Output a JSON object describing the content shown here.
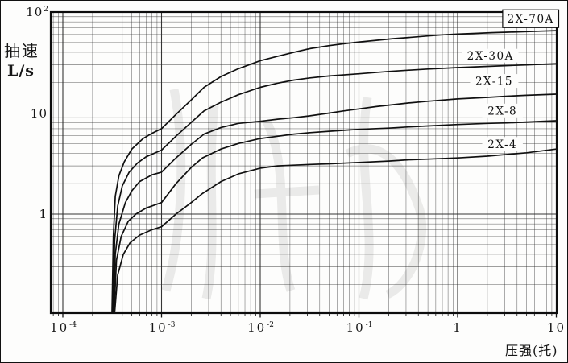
{
  "figure": {
    "y_axis_title_line1": "抽速",
    "y_axis_title_line2": "L/s",
    "x_axis_title": "压强(托)"
  },
  "chart_data": {
    "type": "line",
    "title": "",
    "xlabel": "压强(托)",
    "ylabel": "抽速 L/s",
    "x_scale": "log",
    "y_scale": "log",
    "x_range": [
      7.5e-05,
      10
    ],
    "y_range": [
      0.105,
      100
    ],
    "grid": true,
    "legend_position": "labels-on-curves",
    "x_ticks": [
      {
        "text": "10",
        "sup": "-4",
        "value": 0.0001
      },
      {
        "text": "10",
        "sup": "-3",
        "value": 0.001
      },
      {
        "text": "10",
        "sup": "-2",
        "value": 0.01
      },
      {
        "text": "10",
        "sup": "-1",
        "value": 0.1
      },
      {
        "text": "1",
        "sup": "",
        "value": 1
      },
      {
        "text": "10",
        "sup": "",
        "value": 10
      }
    ],
    "y_ticks": [
      {
        "text": "10",
        "sup": "2",
        "value": 100
      },
      {
        "text": "10",
        "sup": "",
        "value": 10
      },
      {
        "text": "1",
        "sup": "",
        "value": 1
      }
    ],
    "series": [
      {
        "name": "2X-70A",
        "label": {
          "text": "2X-70A",
          "p": 5.5,
          "s": 86,
          "boxed": true
        },
        "points": [
          [
            0.000315,
            0.105
          ],
          [
            0.000325,
            0.6
          ],
          [
            0.00034,
            1.5
          ],
          [
            0.00037,
            2.4
          ],
          [
            0.00042,
            3.3
          ],
          [
            0.0005,
            4.4
          ],
          [
            0.00065,
            5.6
          ],
          [
            0.0008,
            6.3
          ],
          [
            0.001,
            7.0
          ],
          [
            0.0014,
            9.7
          ],
          [
            0.002,
            13.5
          ],
          [
            0.0027,
            18
          ],
          [
            0.004,
            23
          ],
          [
            0.006,
            27.5
          ],
          [
            0.01,
            33
          ],
          [
            0.015,
            36.5
          ],
          [
            0.022,
            40
          ],
          [
            0.032,
            43.5
          ],
          [
            0.05,
            46.5
          ],
          [
            0.07,
            48.5
          ],
          [
            0.1,
            50.5
          ],
          [
            0.15,
            52.5
          ],
          [
            0.22,
            54.5
          ],
          [
            0.32,
            56
          ],
          [
            0.5,
            58
          ],
          [
            0.7,
            59.5
          ],
          [
            1,
            60.5
          ],
          [
            1.5,
            61.5
          ],
          [
            2.2,
            62.5
          ],
          [
            3.2,
            63.2
          ],
          [
            5,
            64
          ],
          [
            7,
            64.7
          ],
          [
            10,
            65.5
          ]
        ]
      },
      {
        "name": "2X-30A",
        "label": {
          "text": "2X-30A",
          "p": 2.15,
          "s": 37,
          "boxed": false
        },
        "points": [
          [
            0.00032,
            0.105
          ],
          [
            0.000335,
            0.55
          ],
          [
            0.00036,
            1.2
          ],
          [
            0.0004,
            1.9
          ],
          [
            0.00047,
            2.6
          ],
          [
            0.00057,
            3.2
          ],
          [
            0.0007,
            3.7
          ],
          [
            0.001,
            4.3
          ],
          [
            0.0014,
            5.9
          ],
          [
            0.002,
            8.1
          ],
          [
            0.0027,
            10.5
          ],
          [
            0.004,
            12.8
          ],
          [
            0.006,
            15.2
          ],
          [
            0.01,
            18
          ],
          [
            0.015,
            19.8
          ],
          [
            0.022,
            21.2
          ],
          [
            0.032,
            22.3
          ],
          [
            0.05,
            23.3
          ],
          [
            0.1,
            24.5
          ],
          [
            0.2,
            25.8
          ],
          [
            0.32,
            26.6
          ],
          [
            0.5,
            27.3
          ],
          [
            1,
            28.2
          ],
          [
            2,
            29
          ],
          [
            3.2,
            29.5
          ],
          [
            5,
            30
          ],
          [
            10,
            30.8
          ]
        ]
      },
      {
        "name": "2X-15",
        "label": {
          "text": "2X-15",
          "p": 2.35,
          "s": 20.8,
          "boxed": false
        },
        "points": [
          [
            0.000325,
            0.105
          ],
          [
            0.00034,
            0.4
          ],
          [
            0.00037,
            0.8
          ],
          [
            0.00043,
            1.3
          ],
          [
            0.0005,
            1.7
          ],
          [
            0.0006,
            2.1
          ],
          [
            0.0008,
            2.45
          ],
          [
            0.001,
            2.6
          ],
          [
            0.0014,
            3.6
          ],
          [
            0.002,
            4.9
          ],
          [
            0.0027,
            6.2
          ],
          [
            0.004,
            7.2
          ],
          [
            0.006,
            7.9
          ],
          [
            0.01,
            8.3
          ],
          [
            0.015,
            8.7
          ],
          [
            0.022,
            9.0
          ],
          [
            0.032,
            9.4
          ],
          [
            0.05,
            10
          ],
          [
            0.07,
            10.5
          ],
          [
            0.1,
            11
          ],
          [
            0.15,
            11.6
          ],
          [
            0.22,
            12.1
          ],
          [
            0.32,
            12.6
          ],
          [
            0.5,
            13.1
          ],
          [
            1,
            13.8
          ],
          [
            2,
            14.3
          ],
          [
            3.2,
            14.7
          ],
          [
            5,
            15
          ],
          [
            10,
            15.4
          ]
        ]
      },
      {
        "name": "2X-8",
        "label": {
          "text": "2X-8",
          "p": 2.85,
          "s": 10.6,
          "boxed": false
        },
        "points": [
          [
            0.00033,
            0.105
          ],
          [
            0.00035,
            0.35
          ],
          [
            0.00039,
            0.6
          ],
          [
            0.00046,
            0.85
          ],
          [
            0.00055,
            1.0
          ],
          [
            0.0007,
            1.15
          ],
          [
            0.001,
            1.3
          ],
          [
            0.0014,
            2.0
          ],
          [
            0.002,
            2.9
          ],
          [
            0.0026,
            3.6
          ],
          [
            0.004,
            4.4
          ],
          [
            0.006,
            5.0
          ],
          [
            0.01,
            5.6
          ],
          [
            0.015,
            5.9
          ],
          [
            0.022,
            6.2
          ],
          [
            0.032,
            6.4
          ],
          [
            0.05,
            6.6
          ],
          [
            0.1,
            6.9
          ],
          [
            0.2,
            7.1
          ],
          [
            0.32,
            7.3
          ],
          [
            0.5,
            7.45
          ],
          [
            1,
            7.7
          ],
          [
            2,
            7.9
          ],
          [
            3.2,
            8.0
          ],
          [
            5,
            8.15
          ],
          [
            10,
            8.4
          ]
        ]
      },
      {
        "name": "2X-4",
        "label": {
          "text": "2X-4",
          "p": 2.85,
          "s": 4.95,
          "boxed": false
        },
        "points": [
          [
            0.000335,
            0.105
          ],
          [
            0.00036,
            0.25
          ],
          [
            0.00041,
            0.4
          ],
          [
            0.00048,
            0.52
          ],
          [
            0.0006,
            0.62
          ],
          [
            0.0008,
            0.7
          ],
          [
            0.001,
            0.75
          ],
          [
            0.0014,
            1.0
          ],
          [
            0.002,
            1.3
          ],
          [
            0.0026,
            1.6
          ],
          [
            0.004,
            2.1
          ],
          [
            0.006,
            2.5
          ],
          [
            0.01,
            2.85
          ],
          [
            0.015,
            3.0
          ],
          [
            0.022,
            3.05
          ],
          [
            0.032,
            3.1
          ],
          [
            0.05,
            3.15
          ],
          [
            0.1,
            3.25
          ],
          [
            0.2,
            3.35
          ],
          [
            0.32,
            3.45
          ],
          [
            0.5,
            3.5
          ],
          [
            1,
            3.6
          ],
          [
            2,
            3.75
          ],
          [
            3.2,
            3.9
          ],
          [
            5,
            4.05
          ],
          [
            10,
            4.4
          ]
        ]
      }
    ]
  }
}
